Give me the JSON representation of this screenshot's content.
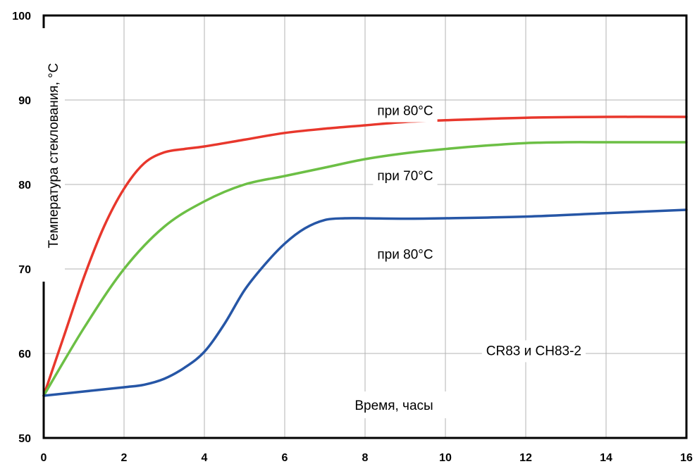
{
  "chart_data": {
    "type": "line",
    "title": "",
    "xlabel": "Время, часы",
    "ylabel": "Температура стеклования, °C",
    "xlim": [
      0,
      16
    ],
    "ylim": [
      50,
      100
    ],
    "xticks": [
      0,
      2,
      4,
      6,
      8,
      10,
      12,
      14,
      16
    ],
    "yticks": [
      50,
      60,
      70,
      80,
      90,
      100
    ],
    "grid": true,
    "series": [
      {
        "name": "при 80°C",
        "color": "#e8372c",
        "x": [
          0,
          0.5,
          1,
          1.5,
          2,
          2.5,
          3,
          3.5,
          4,
          5,
          6,
          7,
          8,
          9,
          10,
          12,
          14,
          16
        ],
        "y": [
          55,
          62,
          69,
          75,
          79.5,
          82.5,
          83.8,
          84.2,
          84.5,
          85.3,
          86.1,
          86.6,
          87,
          87.4,
          87.6,
          87.9,
          88,
          88
        ]
      },
      {
        "name": "при 70°C",
        "color": "#6cbf45",
        "x": [
          0,
          1,
          2,
          3,
          4,
          5,
          6,
          7,
          8,
          9,
          10,
          11,
          12,
          13,
          14,
          15,
          16
        ],
        "y": [
          55,
          63,
          70,
          75,
          78,
          80,
          81,
          82,
          83,
          83.7,
          84.2,
          84.6,
          84.9,
          85,
          85,
          85,
          85
        ]
      },
      {
        "name": "при 80°C",
        "color": "#2656a6",
        "x": [
          0,
          1,
          2,
          2.5,
          3,
          3.5,
          4,
          4.5,
          5,
          5.5,
          6,
          6.5,
          7,
          7.5,
          8,
          9,
          10,
          12,
          14,
          16
        ],
        "y": [
          55,
          55.5,
          56,
          56.3,
          57,
          58.3,
          60.2,
          63.5,
          67.5,
          70.5,
          73,
          74.8,
          75.8,
          76,
          76,
          75.95,
          76,
          76.2,
          76.6,
          77
        ]
      }
    ],
    "annotations": [
      {
        "text": "при 80°C",
        "x": 9,
        "y": 88.2
      },
      {
        "text": "при 70°C",
        "x": 9,
        "y": 80.5
      },
      {
        "text": "при 80°C",
        "x": 9,
        "y": 71.2
      },
      {
        "text": "CR83 и CH83-2",
        "x": 12.2,
        "y": 59.8
      }
    ]
  }
}
